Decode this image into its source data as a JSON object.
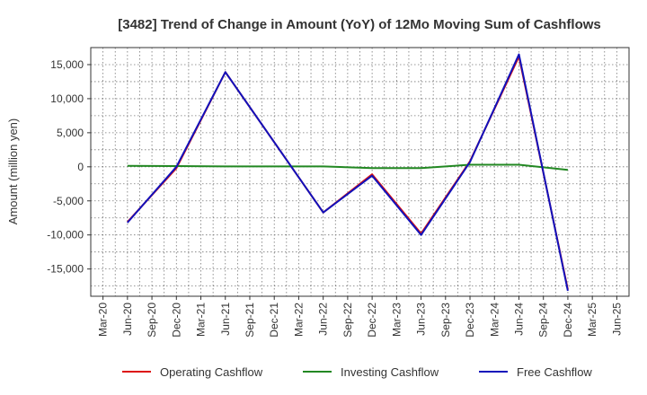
{
  "chart_data": {
    "type": "line",
    "title": "[3482]  Trend of Change in Amount (YoY) of 12Mo Moving Sum of Cashflows",
    "xlabel": "",
    "ylabel": "Amount (million yen)",
    "ylim": [
      -19000,
      17500
    ],
    "yticks": [
      -15000,
      -10000,
      -5000,
      0,
      5000,
      10000,
      15000
    ],
    "ytick_labels": [
      "-15,000",
      "-10,000",
      "-5,000",
      "0",
      "5,000",
      "10,000",
      "15,000"
    ],
    "categories": [
      "Mar-20",
      "Jun-20",
      "Sep-20",
      "Dec-20",
      "Mar-21",
      "Jun-21",
      "Sep-21",
      "Dec-21",
      "Mar-22",
      "Jun-22",
      "Sep-22",
      "Dec-22",
      "Mar-23",
      "Jun-23",
      "Sep-23",
      "Dec-23",
      "Mar-24",
      "Jun-24",
      "Sep-24",
      "Dec-24",
      "Mar-25",
      "Jun-25"
    ],
    "grid": true,
    "legend_position": "bottom",
    "series": [
      {
        "name": "Operating Cashflow",
        "color": "#dd1111",
        "values": [
          null,
          -8100,
          null,
          -200,
          null,
          13900,
          null,
          null,
          null,
          -6700,
          null,
          -1100,
          null,
          -9800,
          null,
          800,
          null,
          16200,
          null,
          -18000,
          null,
          null
        ]
      },
      {
        "name": "Investing Cashflow",
        "color": "#228822",
        "values": [
          null,
          150,
          null,
          100,
          null,
          50,
          null,
          null,
          null,
          50,
          null,
          -200,
          null,
          -200,
          null,
          300,
          null,
          300,
          null,
          -450,
          null,
          null
        ]
      },
      {
        "name": "Free Cashflow",
        "color": "#1111bb",
        "values": [
          null,
          -8200,
          null,
          0,
          null,
          13900,
          null,
          null,
          null,
          -6700,
          null,
          -1300,
          null,
          -10000,
          null,
          700,
          null,
          16500,
          null,
          -18200,
          null,
          null
        ]
      }
    ]
  }
}
